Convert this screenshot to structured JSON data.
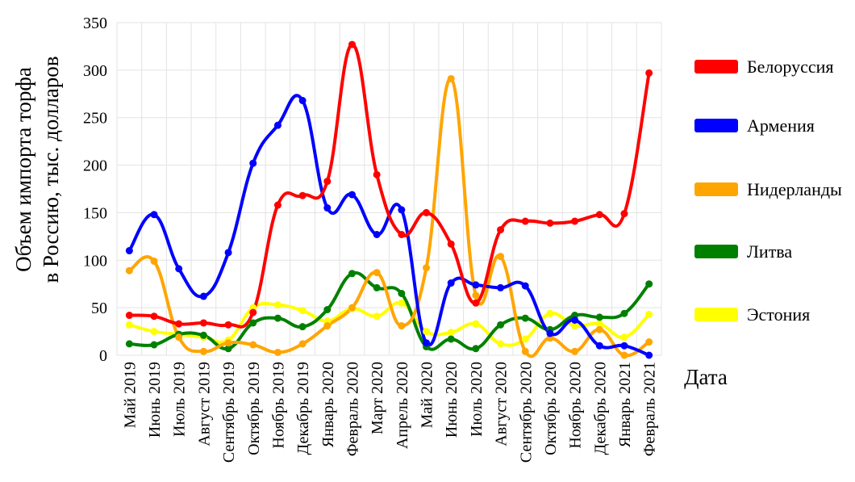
{
  "chart_data": {
    "type": "line",
    "xlabel": "Дата",
    "ylabel": [
      "Объем импорта торфа",
      "в Россию, тыс. долларов"
    ],
    "ylim": [
      0,
      350
    ],
    "yticks": [
      "0",
      "50",
      "100",
      "150",
      "200",
      "250",
      "300",
      "350"
    ],
    "categories": [
      "Май 2019",
      "Июнь 2019",
      "Июль 2019",
      "Август 2019",
      "Сентябрь 2019",
      "Октябрь 2019",
      "Ноябрь 2019",
      "Декабрь 2019",
      "Январь 2020",
      "Февраль 2020",
      "Март 2020",
      "Апрель 2020",
      "Май 2020",
      "Июнь 2020",
      "Июль 2020",
      "Август 2020",
      "Сентябрь 2020",
      "Октябрь 2020",
      "Ноябрь 2020",
      "Декабрь 2020",
      "Январь 2021",
      "Февраль 2021"
    ],
    "grid": true,
    "legend_position": "right",
    "series": [
      {
        "name": "Белоруссия",
        "color": "#ff0000",
        "values": [
          42,
          41,
          33,
          34,
          32,
          45,
          158,
          168,
          183,
          327,
          190,
          127,
          150,
          117,
          55,
          132,
          141,
          139,
          141,
          148,
          149,
          297
        ]
      },
      {
        "name": "Армения",
        "color": "#0000ff",
        "values": [
          110,
          148,
          91,
          62,
          108,
          202,
          242,
          268,
          155,
          169,
          127,
          153,
          13,
          76,
          74,
          71,
          73,
          23,
          37,
          10,
          10,
          0
        ]
      },
      {
        "name": "Нидерланды",
        "color": "#ffa500",
        "values": [
          89,
          99,
          19,
          4,
          13,
          11,
          3,
          12,
          31,
          50,
          87,
          31,
          92,
          291,
          63,
          104,
          4,
          18,
          4,
          27,
          0,
          14
        ]
      },
      {
        "name": "Литва",
        "color": "#008000",
        "values": [
          12,
          11,
          22,
          21,
          7,
          34,
          39,
          30,
          48,
          86,
          71,
          65,
          9,
          17,
          7,
          32,
          39,
          27,
          42,
          40,
          44,
          75
        ]
      },
      {
        "name": "Эстония",
        "color": "#ffff00",
        "values": [
          32,
          25,
          22,
          19,
          16,
          50,
          53,
          47,
          36,
          49,
          41,
          55,
          25,
          24,
          33,
          12,
          17,
          44,
          31,
          33,
          19,
          43
        ]
      }
    ]
  }
}
